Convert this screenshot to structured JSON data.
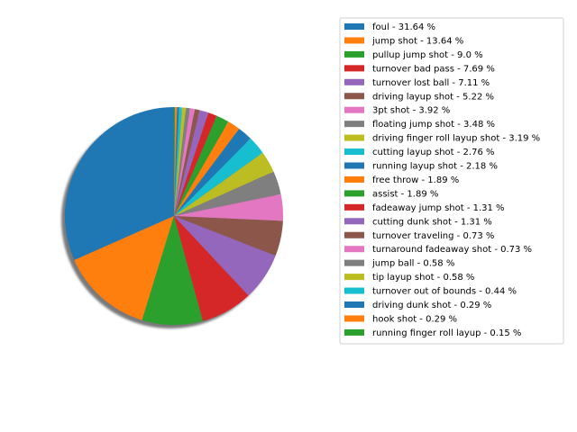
{
  "chart_data": {
    "type": "pie",
    "start_angle_deg": 90,
    "direction": "counterclockwise",
    "shadow": true,
    "legend_position": "top-right",
    "slices": [
      {
        "label": "foul - 31.64 %",
        "value": 31.64,
        "color": "#1f77b4"
      },
      {
        "label": "jump shot - 13.64 %",
        "value": 13.64,
        "color": "#ff7f0e"
      },
      {
        "label": "pullup jump shot - 9.0 %",
        "value": 9.0,
        "color": "#2ca02c"
      },
      {
        "label": "turnover bad pass - 7.69 %",
        "value": 7.69,
        "color": "#d62728"
      },
      {
        "label": "turnover lost ball - 7.11 %",
        "value": 7.11,
        "color": "#9467bd"
      },
      {
        "label": "driving layup shot - 5.22 %",
        "value": 5.22,
        "color": "#8c564b"
      },
      {
        "label": "3pt shot - 3.92 %",
        "value": 3.92,
        "color": "#e377c2"
      },
      {
        "label": "floating jump shot - 3.48 %",
        "value": 3.48,
        "color": "#7f7f7f"
      },
      {
        "label": "driving finger roll layup shot - 3.19 %",
        "value": 3.19,
        "color": "#bcbd22"
      },
      {
        "label": "cutting layup shot - 2.76 %",
        "value": 2.76,
        "color": "#17becf"
      },
      {
        "label": "running layup shot - 2.18 %",
        "value": 2.18,
        "color": "#1f77b4"
      },
      {
        "label": "free throw - 1.89 %",
        "value": 1.89,
        "color": "#ff7f0e"
      },
      {
        "label": "assist - 1.89 %",
        "value": 1.89,
        "color": "#2ca02c"
      },
      {
        "label": "fadeaway jump shot - 1.31 %",
        "value": 1.31,
        "color": "#d62728"
      },
      {
        "label": "cutting dunk shot - 1.31 %",
        "value": 1.31,
        "color": "#9467bd"
      },
      {
        "label": "turnover traveling - 0.73 %",
        "value": 0.73,
        "color": "#8c564b"
      },
      {
        "label": "turnaround fadeaway shot - 0.73 %",
        "value": 0.73,
        "color": "#e377c2"
      },
      {
        "label": "jump ball - 0.58 %",
        "value": 0.58,
        "color": "#7f7f7f"
      },
      {
        "label": "tip layup shot - 0.58 %",
        "value": 0.58,
        "color": "#bcbd22"
      },
      {
        "label": "turnover out of bounds - 0.44 %",
        "value": 0.44,
        "color": "#17becf"
      },
      {
        "label": "driving dunk shot - 0.29 %",
        "value": 0.29,
        "color": "#1f77b4"
      },
      {
        "label": "hook shot - 0.29 %",
        "value": 0.29,
        "color": "#ff7f0e"
      },
      {
        "label": "running finger roll layup - 0.15 %",
        "value": 0.15,
        "color": "#2ca02c"
      }
    ]
  }
}
